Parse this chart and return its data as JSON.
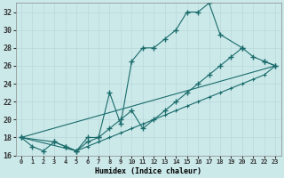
{
  "xlabel": "Humidex (Indice chaleur)",
  "bg_color": "#cce9ea",
  "grid_color": "#b8d8da",
  "line_color": "#1a6b6b",
  "xlim": [
    -0.5,
    23.5
  ],
  "ylim": [
    16,
    33
  ],
  "xticks": [
    0,
    1,
    2,
    3,
    4,
    5,
    6,
    7,
    8,
    9,
    10,
    11,
    12,
    13,
    14,
    15,
    16,
    17,
    18,
    19,
    20,
    21,
    22,
    23
  ],
  "yticks": [
    16,
    18,
    20,
    22,
    24,
    26,
    28,
    30,
    32
  ],
  "line1_x": [
    0,
    1,
    2,
    3,
    4,
    5,
    6,
    7,
    8,
    9,
    10,
    11,
    12,
    13,
    14,
    15,
    16,
    17,
    18,
    20,
    21,
    22,
    23
  ],
  "line1_y": [
    18,
    17,
    16.5,
    17.5,
    17,
    16.5,
    18,
    18,
    23,
    19.5,
    26.5,
    28,
    28,
    29,
    30,
    32,
    32,
    33,
    29.5,
    28,
    27,
    26.5,
    26
  ],
  "line2_x": [
    0,
    3,
    4,
    5,
    6,
    7,
    8,
    9,
    10,
    11,
    12,
    13,
    14,
    15,
    16,
    17,
    18,
    19,
    20,
    21,
    22,
    23
  ],
  "line2_y": [
    18,
    17.5,
    17,
    16.5,
    17.5,
    18,
    19,
    20,
    21,
    19,
    20,
    21,
    22,
    23,
    24,
    25,
    26,
    27,
    28,
    null,
    26.5,
    26
  ],
  "line3_x": [
    0,
    5,
    6,
    7,
    8,
    9,
    10,
    11,
    12,
    13,
    14,
    15,
    16,
    17,
    18,
    19,
    20,
    21,
    22,
    23
  ],
  "line3_y": [
    18,
    16.5,
    17,
    17.5,
    18,
    18.5,
    19,
    19.5,
    20,
    20.5,
    21,
    21.5,
    22,
    22.5,
    23,
    23.5,
    24,
    24.5,
    25,
    26
  ],
  "line4_x": [
    0,
    23
  ],
  "line4_y": [
    18,
    26
  ]
}
